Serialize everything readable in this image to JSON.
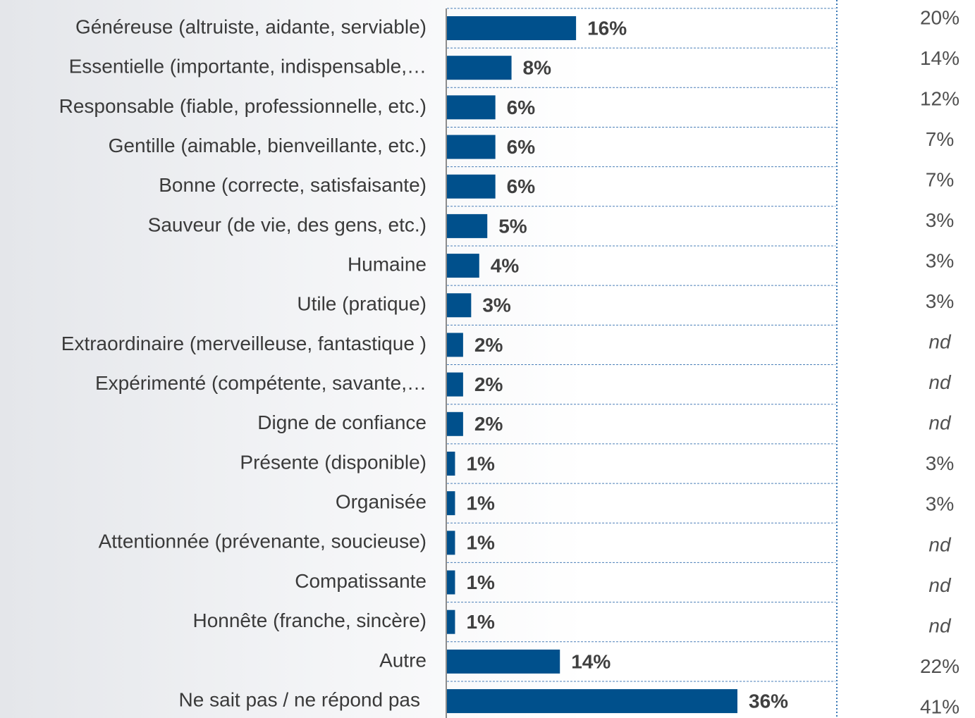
{
  "chart_data": {
    "type": "barh",
    "color": "#00508c",
    "categories": [
      "Généreuse (altruiste, aidante, serviable)",
      "Essentielle (importante, indispensable,…",
      "Responsable (fiable, professionnelle, etc.)",
      "Gentille (aimable, bienveillante, etc.)",
      "Bonne (correcte, satisfaisante)",
      "Sauveur (de vie, des gens, etc.)",
      "Humaine",
      "Utile (pratique)",
      "Extraordinaire (merveilleuse, fantastique )",
      "Expérimenté (compétente, savante,…",
      "Digne de confiance",
      "Présente (disponible)",
      "Organisée",
      "Attentionnée (prévenante, soucieuse)",
      "Compatissante",
      "Honnête (franche, sincère)",
      "Autre",
      "Ne sait pas / ne répond pas"
    ],
    "values": [
      16,
      8,
      6,
      6,
      6,
      5,
      4,
      3,
      2,
      2,
      2,
      1,
      1,
      1,
      1,
      1,
      14,
      36
    ],
    "value_labels": [
      "16%",
      "8%",
      "6%",
      "6%",
      "6%",
      "5%",
      "4%",
      "3%",
      "2%",
      "2%",
      "2%",
      "1%",
      "1%",
      "1%",
      "1%",
      "1%",
      "14%",
      "36%"
    ],
    "comparison": [
      "20%",
      "14%",
      "12%",
      "7%",
      "7%",
      "3%",
      "3%",
      "3%",
      "nd",
      "nd",
      "nd",
      "3%",
      "3%",
      "nd",
      "nd",
      "nd",
      "22%",
      "41%"
    ]
  }
}
